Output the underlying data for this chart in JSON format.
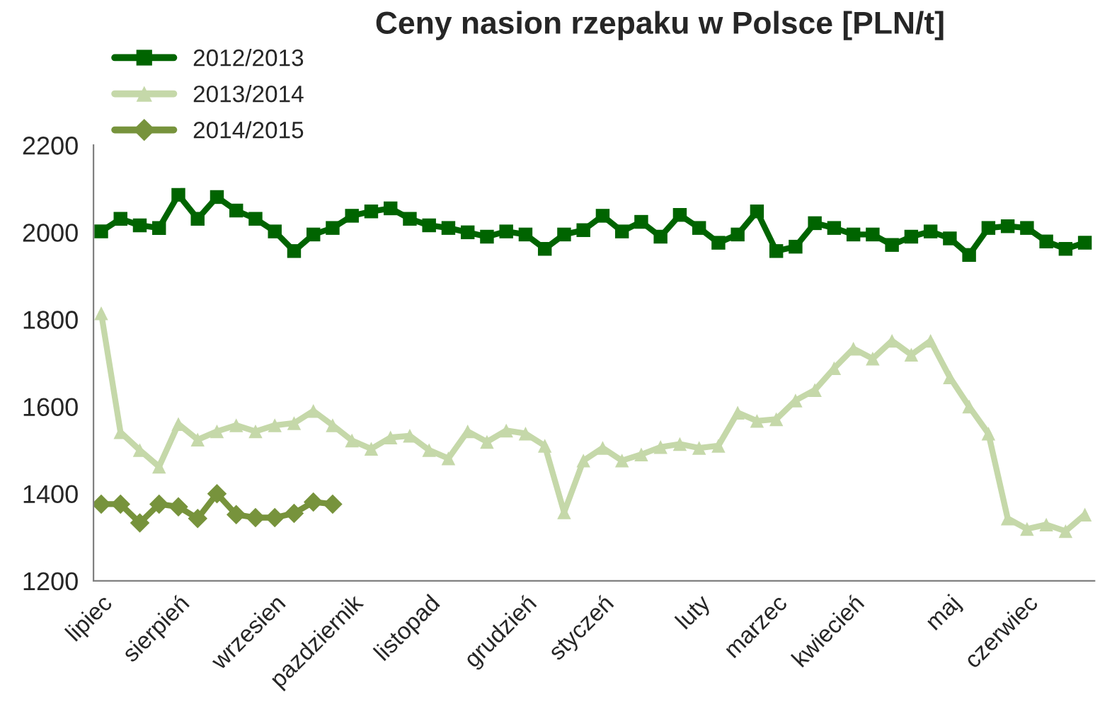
{
  "chart_data": {
    "type": "line",
    "title": "Ceny nasion rzepaku w Polsce [PLN/t]",
    "categories": [
      "lipiec",
      null,
      null,
      null,
      "sierpień",
      null,
      null,
      null,
      null,
      "wrzesien",
      null,
      null,
      null,
      "pazdziernik",
      null,
      null,
      null,
      "listopad",
      null,
      null,
      null,
      null,
      "grudzień",
      null,
      null,
      null,
      "styczeń",
      null,
      null,
      null,
      null,
      "luty",
      null,
      null,
      null,
      "marzec",
      null,
      null,
      null,
      "kwiecień",
      null,
      null,
      null,
      null,
      "maj",
      null,
      null,
      null,
      "czerwiec",
      null,
      null,
      null
    ],
    "series": [
      {
        "name": "2012/2013",
        "color": "#006400",
        "marker": "square",
        "values": [
          2002,
          2031,
          2016,
          2010,
          2086,
          2031,
          2081,
          2050,
          2031,
          2002,
          1957,
          1995,
          2010,
          2038,
          2048,
          2055,
          2031,
          2016,
          2010,
          2000,
          1990,
          2002,
          1995,
          1962,
          1995,
          2005,
          2038,
          2002,
          2024,
          1990,
          2040,
          2010,
          1976,
          1995,
          2048,
          1957,
          1967,
          2021,
          2010,
          1995,
          1995,
          1971,
          1990,
          2002,
          1986,
          1948,
          2010,
          2014,
          2010,
          1979,
          1962,
          1976
        ]
      },
      {
        "name": "2013/2014",
        "color": "#c5d8a9",
        "marker": "triangle",
        "values": [
          1814,
          1541,
          1500,
          1462,
          1560,
          1524,
          1543,
          1557,
          1543,
          1557,
          1562,
          1590,
          1557,
          1522,
          1503,
          1529,
          1533,
          1500,
          1481,
          1543,
          1519,
          1545,
          1538,
          1510,
          1357,
          1476,
          1505,
          1476,
          1490,
          1507,
          1514,
          1505,
          1510,
          1586,
          1567,
          1571,
          1614,
          1638,
          1688,
          1733,
          1710,
          1751,
          1719,
          1751,
          1667,
          1600,
          1538,
          1343,
          1319,
          1329,
          1314,
          1352
        ]
      },
      {
        "name": "2014/2015",
        "color": "#77933c",
        "marker": "diamond",
        "values": [
          1376,
          1376,
          1333,
          1376,
          1370,
          1343,
          1400,
          1352,
          1345,
          1345,
          1355,
          1381,
          1376,
          null,
          null,
          null,
          null,
          null,
          null,
          null,
          null,
          null,
          null,
          null,
          null,
          null,
          null,
          null,
          null,
          null,
          null,
          null,
          null,
          null,
          null,
          null,
          null,
          null,
          null,
          null,
          null,
          null,
          null,
          null,
          null,
          null,
          null,
          null,
          null,
          null,
          null,
          null
        ]
      }
    ],
    "ylim": [
      1200,
      2200
    ],
    "yticks": [
      1200,
      1400,
      1600,
      1800,
      2000,
      2200
    ],
    "grid": false,
    "legend": "top left",
    "line_style": "solid"
  }
}
